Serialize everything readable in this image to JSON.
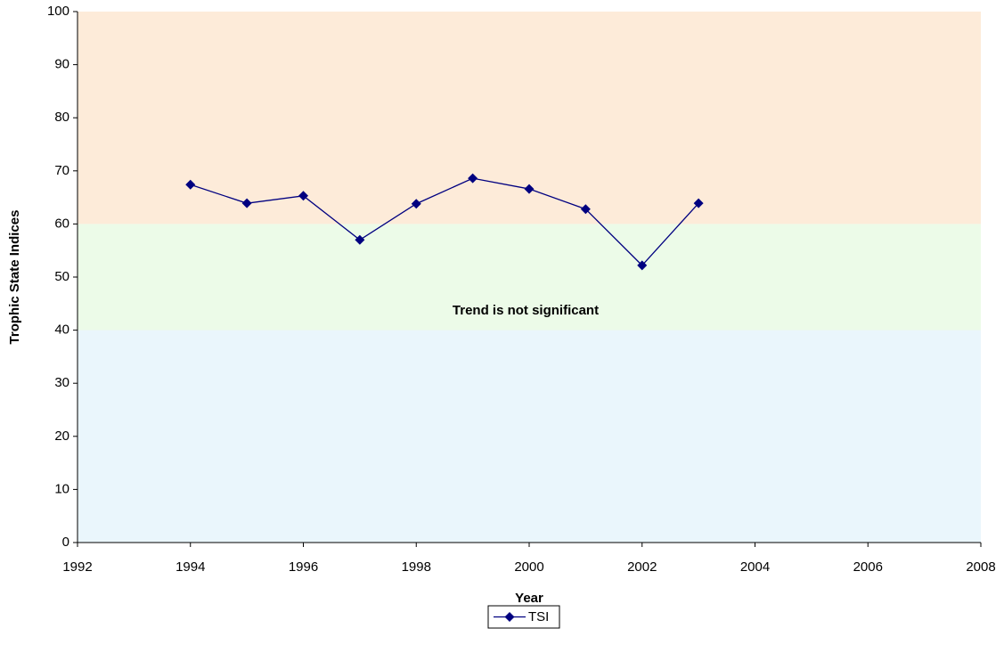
{
  "chart_data": {
    "type": "line",
    "xlabel": "Year",
    "ylabel": "Trophic State Indices",
    "annotation": "Trend is not significant",
    "x": [
      1994,
      1995,
      1996,
      1997,
      1998,
      1999,
      2000,
      2001,
      2002,
      2003
    ],
    "series": [
      {
        "name": "TSI",
        "color": "#000080",
        "values": [
          67.4,
          63.9,
          65.3,
          57.0,
          63.8,
          68.6,
          66.6,
          62.8,
          52.2,
          63.9
        ]
      }
    ],
    "xlim": [
      1992,
      2008
    ],
    "xticks": [
      1992,
      1994,
      1996,
      1998,
      2000,
      2002,
      2004,
      2006,
      2008
    ],
    "ylim": [
      0,
      100
    ],
    "yticks": [
      0,
      10,
      20,
      30,
      40,
      50,
      60,
      70,
      80,
      90,
      100
    ],
    "bands": [
      {
        "from": 0,
        "to": 40,
        "color": "#eaf6fc"
      },
      {
        "from": 40,
        "to": 60,
        "color": "#ecfbe8"
      },
      {
        "from": 60,
        "to": 100,
        "color": "#fdebd9"
      }
    ],
    "grid": false,
    "legend": "bottom"
  }
}
